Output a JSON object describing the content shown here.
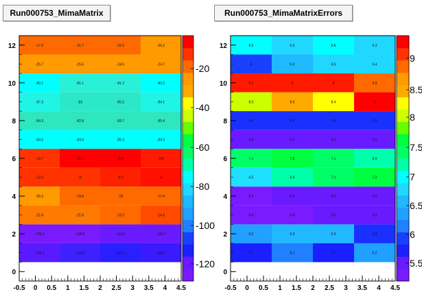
{
  "chart_data": [
    {
      "type": "heatmap",
      "title": "Run000753_MimaMatrix",
      "x_ticks": [
        "-0.5",
        "0",
        "0.5",
        "1",
        "1.5",
        "2",
        "2.5",
        "3",
        "3.5",
        "4",
        "4.5"
      ],
      "y_ticks": [
        "0",
        "2",
        "4",
        "6",
        "8",
        "10",
        "12"
      ],
      "xlim": [
        -0.5,
        4.5
      ],
      "ylim": [
        -0.5,
        12.5
      ],
      "colorbar_ticks": [
        "-20",
        "-40",
        "-60",
        "-80",
        "-100",
        "-120"
      ],
      "rows": [
        {
          "y": 12,
          "values": [
            -17.9,
            -21.7,
            -22.5,
            -26.2
          ],
          "colors": [
            "#ff6a00",
            "#ff6a00",
            "#ff6a00",
            "#ff9a00"
          ]
        },
        {
          "y": 11,
          "values": [
            -25.7,
            -25.6,
            -24.5,
            -24.7
          ],
          "colors": [
            "#ff9a00",
            "#ff9a00",
            "#ff9a00",
            "#ff9a00"
          ]
        },
        {
          "y": 10,
          "values": [
            -80.1,
            -81.1,
            -81.2,
            -80.2
          ],
          "colors": [
            "#00ffff",
            "#2bf0d8",
            "#2bf0d8",
            "#00ffff"
          ]
        },
        {
          "y": 9,
          "values": [
            -87.3,
            -83,
            -85.2,
            -84.1
          ],
          "colors": [
            "#20f5e5",
            "#2ae8c9",
            "#2ae8c9",
            "#20f5e5"
          ]
        },
        {
          "y": 8,
          "values": [
            -84.3,
            -82.8,
            -83.7,
            -85.4
          ],
          "colors": [
            "#2ee6c0",
            "#2ee6c0",
            "#2ee6c0",
            "#2ee6c0"
          ]
        },
        {
          "y": 7,
          "values": [
            -84.6,
            -84.6,
            -85.3,
            -84.3
          ],
          "colors": [
            "#00ffff",
            "#00ffff",
            "#00ffff",
            "#00ffff"
          ]
        },
        {
          "y": 6,
          "values": [
            -13.7,
            -0.1,
            -0.6,
            -3.6
          ],
          "colors": [
            "#ff3300",
            "#ff0000",
            "#ff0000",
            "#ff1a00"
          ]
        },
        {
          "y": 5,
          "values": [
            -12.5,
            -11,
            -8.2,
            -4
          ],
          "colors": [
            "#ff3300",
            "#ff3300",
            "#ff2000",
            "#ff1000"
          ]
        },
        {
          "y": 4,
          "values": [
            -26.3,
            -19.8,
            -18,
            -17.4
          ],
          "colors": [
            "#ff9a00",
            "#ff6a00",
            "#ff6a00",
            "#ff6a00"
          ]
        },
        {
          "y": 3,
          "values": [
            -22.4,
            -21.6,
            -19.3,
            -14.3
          ],
          "colors": [
            "#ff7a00",
            "#ff7a00",
            "#ff6a00",
            "#ff4a00"
          ]
        },
        {
          "y": 2,
          "values": [
            -125.2,
            -125.6,
            -119.2,
            -120.7
          ],
          "colors": [
            "#7a1aff",
            "#7a1aff",
            "#6a1aff",
            "#6a1aff"
          ]
        },
        {
          "y": 1,
          "values": [
            -125.1,
            -124.3,
            -121.1,
            -118.1
          ],
          "colors": [
            "#5a1aff",
            "#4020ff",
            "#2a20ff",
            "#3a1aff"
          ]
        }
      ]
    },
    {
      "type": "heatmap",
      "title": "Run000753_MimaMatrixErrors",
      "x_ticks": [
        "-0.5",
        "0",
        "0.5",
        "1",
        "1.5",
        "2",
        "2.5",
        "3",
        "3.5",
        "4",
        "4.5"
      ],
      "y_ticks": [
        "0",
        "2",
        "4",
        "6",
        "8",
        "10",
        "12"
      ],
      "xlim": [
        -0.5,
        4.5
      ],
      "ylim": [
        -0.5,
        12.5
      ],
      "colorbar_ticks": [
        "9",
        "8.5",
        "8",
        "7.5",
        "7",
        "6.5",
        "6",
        "5.5"
      ],
      "rows": [
        {
          "y": 12,
          "values": [
            6.5,
            6.3,
            6.6,
            6.3
          ],
          "colors": [
            "#00ffff",
            "#20d8ff",
            "#00ffff",
            "#20d8ff"
          ]
        },
        {
          "y": 11,
          "values": [
            6,
            6.3,
            6.5,
            6.4
          ],
          "colors": [
            "#1a40ff",
            "#20b8ff",
            "#20d8ff",
            "#20d8ff"
          ]
        },
        {
          "y": 10,
          "values": [
            9.1,
            9,
            9,
            8.8
          ],
          "colors": [
            "#ff1a00",
            "#ff1a00",
            "#ff1a00",
            "#ff6a00"
          ]
        },
        {
          "y": 9,
          "values": [
            8.3,
            8.6,
            8.4,
            9.0
          ],
          "colors": [
            "#ccff00",
            "#ffaa00",
            "#ffff00",
            "#ff0000"
          ]
        },
        {
          "y": 8,
          "values": [
            5.9,
            5.9,
            5.9,
            5.9
          ],
          "colors": [
            "#1a30ff",
            "#1a30ff",
            "#1a30ff",
            "#1a30ff"
          ]
        },
        {
          "y": 7,
          "values": [
            5.6,
            5.5,
            5.5,
            5.6
          ],
          "colors": [
            "#6a1aff",
            "#6a1aff",
            "#6a1aff",
            "#6a1aff"
          ]
        },
        {
          "y": 6,
          "values": [
            7.1,
            7.2,
            7.1,
            6.9
          ],
          "colors": [
            "#00ff66",
            "#00ff40",
            "#00ff66",
            "#00ffaa"
          ]
        },
        {
          "y": 5,
          "values": [
            6.5,
            6.9,
            7.1,
            7.2
          ],
          "colors": [
            "#20e0ff",
            "#00ffaa",
            "#00ff66",
            "#00ff40"
          ]
        },
        {
          "y": 4,
          "values": [
            5.4,
            5.6,
            5.6,
            5.5
          ],
          "colors": [
            "#7a1aff",
            "#6a1aff",
            "#6a1aff",
            "#6a1aff"
          ]
        },
        {
          "y": 3,
          "values": [
            5.4,
            5.4,
            5.5,
            5.5
          ],
          "colors": [
            "#7a1aff",
            "#7a1aff",
            "#6a1aff",
            "#6a1aff"
          ]
        },
        {
          "y": 2,
          "values": [
            6.2,
            6.3,
            6.3,
            5.9
          ],
          "colors": [
            "#20a0ff",
            "#20b8ff",
            "#20b8ff",
            "#1a30ff"
          ]
        },
        {
          "y": 1,
          "values": [
            5.7,
            6.1,
            5.7,
            6.2
          ],
          "colors": [
            "#1a20ff",
            "#2080ff",
            "#1a20ff",
            "#20a0ff"
          ]
        }
      ]
    }
  ],
  "palette": [
    "#7a1aff",
    "#6a1aff",
    "#1a20ff",
    "#1a40ff",
    "#2080ff",
    "#20a0ff",
    "#20b8ff",
    "#20d8ff",
    "#00ffff",
    "#00ffaa",
    "#00ff66",
    "#00ff40",
    "#66ff00",
    "#ccff00",
    "#ffff00",
    "#ffaa00",
    "#ff9a00",
    "#ff6a00",
    "#ff3300",
    "#ff0000"
  ]
}
